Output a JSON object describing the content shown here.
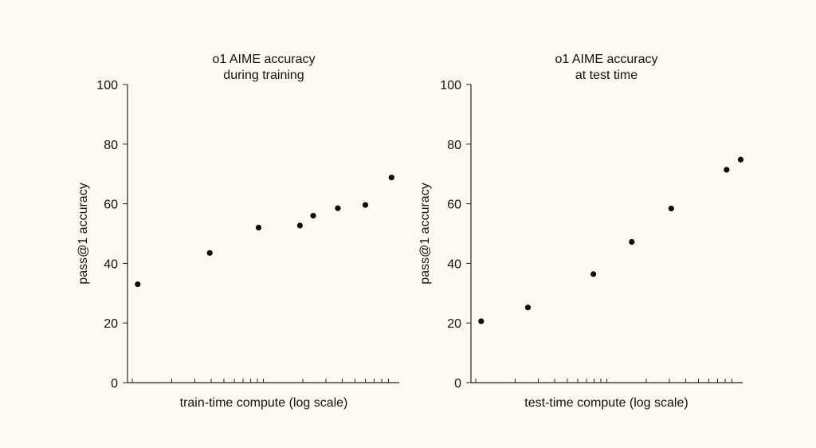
{
  "colors": {
    "background": "#fcf9f2",
    "point": "#0d0d0d",
    "axis": "#222222",
    "text": "#111111"
  },
  "chart_data": [
    {
      "type": "scatter",
      "title": [
        "o1 AIME accuracy",
        "during training"
      ],
      "xlabel": "train-time compute (log scale)",
      "ylabel": "pass@1 accuracy",
      "xscale": "log",
      "xlim": [
        1,
        100
      ],
      "ylim": [
        0,
        100
      ],
      "yticks": [
        0,
        20,
        40,
        60,
        80,
        100
      ],
      "grid": false,
      "points": [
        {
          "x": 1.1,
          "y": 33.0
        },
        {
          "x": 3.9,
          "y": 43.5
        },
        {
          "x": 9.2,
          "y": 52.0
        },
        {
          "x": 19.0,
          "y": 52.7
        },
        {
          "x": 24.0,
          "y": 56.0
        },
        {
          "x": 37.0,
          "y": 58.5
        },
        {
          "x": 60.0,
          "y": 59.6
        },
        {
          "x": 95.0,
          "y": 68.8
        }
      ]
    },
    {
      "type": "scatter",
      "title": [
        "o1 AIME accuracy",
        "at test time"
      ],
      "xlabel": "test-time compute (log scale)",
      "ylabel": "pass@1 accuracy",
      "xscale": "log",
      "xlim": [
        1,
        100
      ],
      "ylim": [
        0,
        100
      ],
      "yticks": [
        0,
        20,
        40,
        60,
        80,
        100
      ],
      "grid": false,
      "points": [
        {
          "x": 1.1,
          "y": 20.6
        },
        {
          "x": 2.5,
          "y": 25.2
        },
        {
          "x": 7.9,
          "y": 36.4
        },
        {
          "x": 15.5,
          "y": 47.2
        },
        {
          "x": 31.0,
          "y": 58.4
        },
        {
          "x": 82.0,
          "y": 71.4
        },
        {
          "x": 105.0,
          "y": 74.8
        }
      ]
    }
  ]
}
